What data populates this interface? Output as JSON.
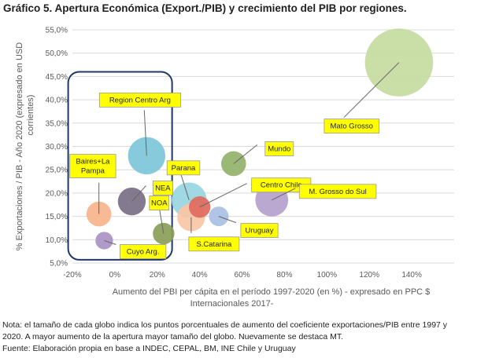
{
  "title": "Gráfico 5. Apertura Económica (Export./PIB) y crecimiento del PIB por regiones.",
  "notes": {
    "line1": "Nota: el tamaño de cada globo indica los puntos porcentuales de aumento del coeficiente exportaciones/PIB entre 1997 y",
    "line2": "2020. A mayor aumento de la apertura mayor tamaño del globo. Nuevamente se destaca MT.",
    "line3": "Fuente: Elaboración propia en base a INDEC, CEPAL, BM, INE Chile y Uruguay"
  },
  "colors": {
    "label_bg": "#ffff00",
    "highlight_box": "#1f3864",
    "grid": "#d9d9d9"
  },
  "chart_data": {
    "type": "bubble",
    "xlabel": "Aumento del PBI per cápita en el período 1997-2020 (en %) - expresado en PPC $ Internacionales 2017-",
    "ylabel": "% Exportaciones / PIB - Año 2020 (expresado en USD corrientes)",
    "xlim": [
      -20,
      160
    ],
    "ylim": [
      5,
      55
    ],
    "x_ticks": [
      "-20%",
      "0%",
      "20%",
      "40%",
      "60%",
      "80%",
      "100%",
      "120%",
      "140%"
    ],
    "y_ticks": [
      "5,0%",
      "10,0%",
      "15,0%",
      "20,0%",
      "25,0%",
      "30,0%",
      "35,0%",
      "40,0%",
      "45,0%",
      "50,0%",
      "55,0%"
    ],
    "grid": "horizontal",
    "points": [
      {
        "label": "Mato Grosso",
        "x": 134,
        "y": 48,
        "size": 30,
        "color": "#c5dba0"
      },
      {
        "label": "Region Centro Arg",
        "x": 15,
        "y": 28,
        "size": 9,
        "color": "#7dc5d8"
      },
      {
        "label": "Mundo",
        "x": 56,
        "y": 26.3,
        "size": 4,
        "color": "#92b26a"
      },
      {
        "label": "Centro Chile",
        "x": 40,
        "y": 17,
        "size": 3,
        "color": "#e06a5e"
      },
      {
        "label": "M. Grosso do Sul",
        "x": 74,
        "y": 18.5,
        "size": 7,
        "color": "#b5a1cc"
      },
      {
        "label": "Parana",
        "x": 35,
        "y": 18.5,
        "size": 8,
        "color": "#98d6e2"
      },
      {
        "label": "Baires+La Pampa",
        "x": -7.5,
        "y": 15.5,
        "size": 4,
        "color": "#f6b48b"
      },
      {
        "label": "NEA",
        "x": 8,
        "y": 18.2,
        "size": 5,
        "color": "#7a6f86"
      },
      {
        "label": "NOA",
        "x": 23,
        "y": 11.3,
        "size": 3,
        "color": "#8a9e58"
      },
      {
        "label": "Uruguay",
        "x": 49,
        "y": 15,
        "size": 2.5,
        "color": "#a9c0e3"
      },
      {
        "label": "S.Catarina",
        "x": 36,
        "y": 14.8,
        "size": 5,
        "color": "#f8c6a5"
      },
      {
        "label": "Cuyo Arg.",
        "x": -5,
        "y": 9.8,
        "size": 2,
        "color": "#a993c3"
      }
    ],
    "highlight_box": {
      "x_range": [
        -22,
        27
      ],
      "y_range": [
        5.7,
        46
      ]
    }
  }
}
